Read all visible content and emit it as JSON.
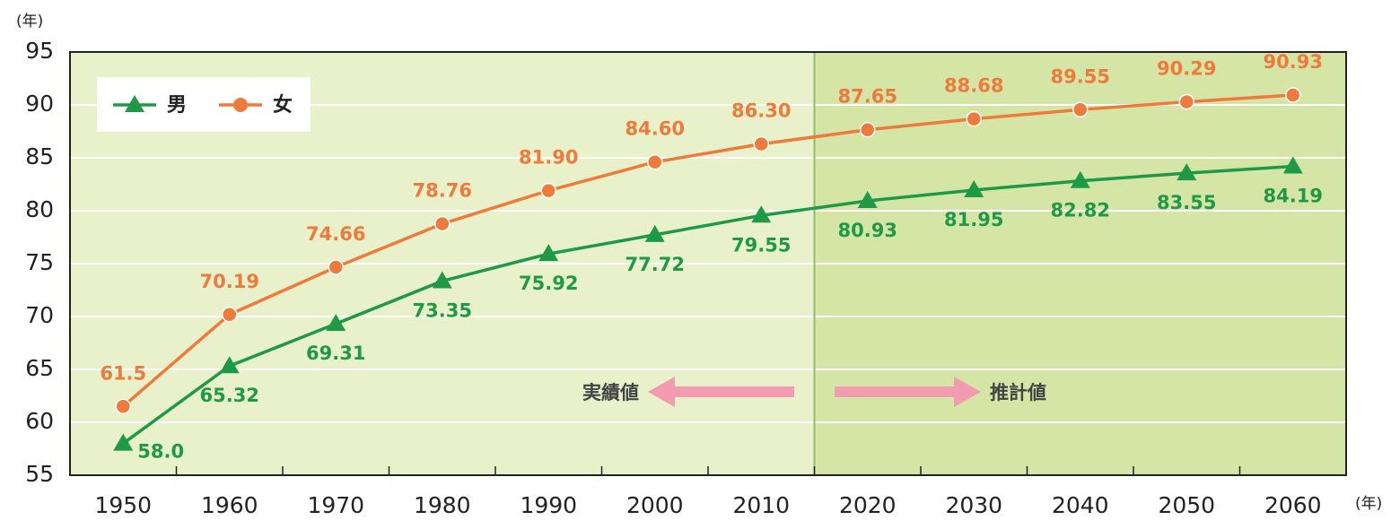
{
  "chart_data": {
    "type": "line",
    "y_unit_label": "(年)",
    "x_unit_label": "(年)",
    "categories": [
      "1950",
      "1960",
      "1970",
      "1980",
      "1990",
      "2000",
      "2010",
      "2020",
      "2030",
      "2040",
      "2050",
      "2060"
    ],
    "series": [
      {
        "name": "男",
        "color": "#1e9a46",
        "marker": "triangle",
        "values": [
          58.0,
          65.32,
          69.31,
          73.35,
          75.92,
          77.72,
          79.55,
          80.93,
          81.95,
          82.82,
          83.55,
          84.19
        ],
        "value_labels": [
          "58.0",
          "65.32",
          "69.31",
          "73.35",
          "75.92",
          "77.72",
          "79.55",
          "80.93",
          "81.95",
          "82.82",
          "83.55",
          "84.19"
        ]
      },
      {
        "name": "女",
        "color": "#ee7a3c",
        "marker": "circle",
        "values": [
          61.5,
          70.19,
          74.66,
          78.76,
          81.9,
          84.6,
          86.3,
          87.65,
          88.68,
          89.55,
          90.29,
          90.93
        ],
        "value_labels": [
          "61.5",
          "70.19",
          "74.66",
          "78.76",
          "81.90",
          "84.60",
          "86.30",
          "87.65",
          "88.68",
          "89.55",
          "90.29",
          "90.93"
        ]
      }
    ],
    "ylim": [
      55,
      95
    ],
    "yticks": [
      55,
      60,
      65,
      70,
      75,
      80,
      85,
      90,
      95
    ],
    "grid": true,
    "legend": "upper left",
    "annotations": [
      "実績値",
      "推計値"
    ]
  }
}
